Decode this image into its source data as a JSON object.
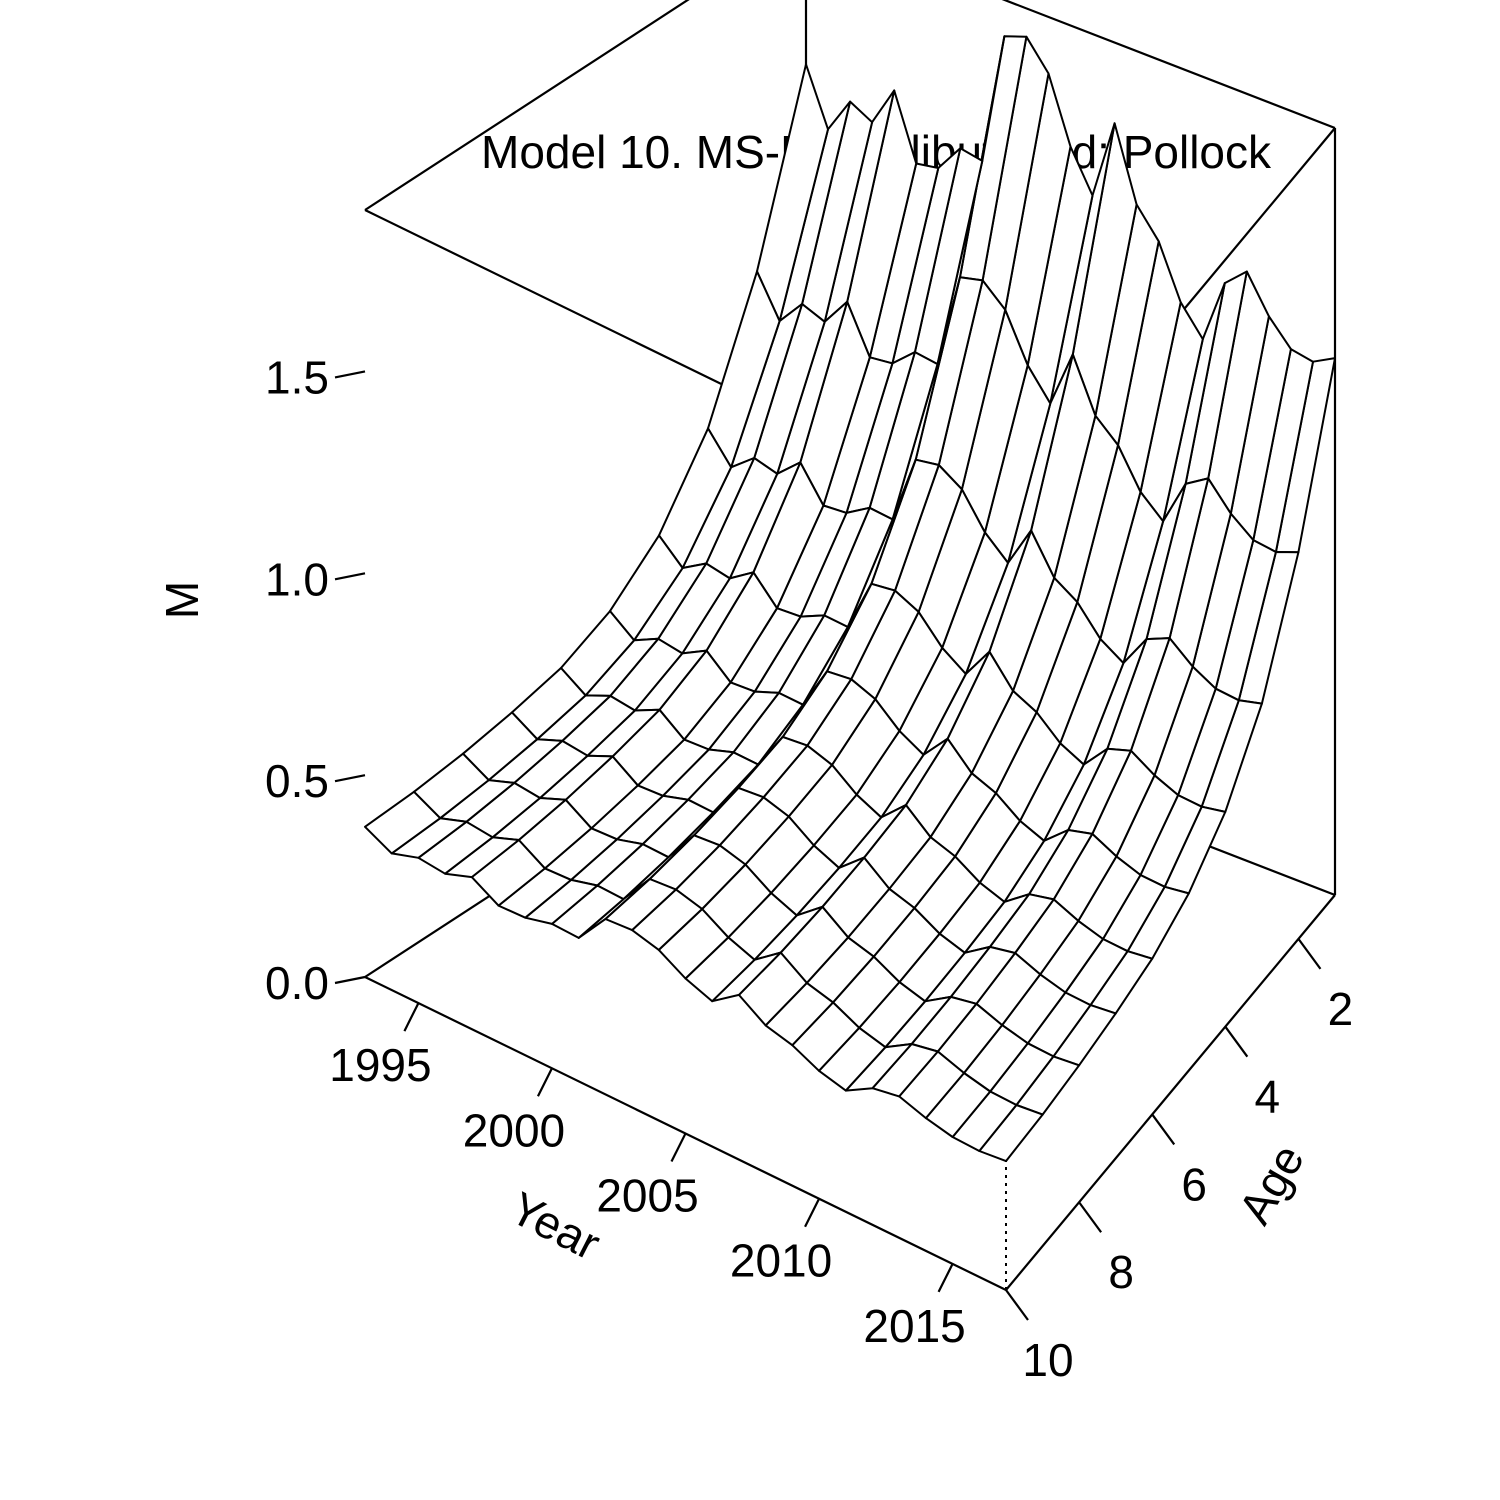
{
  "chart_data": {
    "type": "surface",
    "title": "Model 10. MS-No Halibut med: Pollock",
    "xlabel": "Year",
    "ylabel": "Age",
    "zlabel": "M",
    "x_ticks": [
      1995,
      2000,
      2005,
      2010,
      2015
    ],
    "y_ticks": [
      2,
      4,
      6,
      8,
      10
    ],
    "z_ticks": [
      "0.0",
      "0.5",
      "1.0",
      "1.5"
    ],
    "xlim": [
      1993,
      2017
    ],
    "ylim": [
      1,
      10
    ],
    "zlim": [
      0,
      1.9
    ],
    "years": [
      1993,
      1994,
      1995,
      1996,
      1997,
      1998,
      1999,
      2000,
      2001,
      2002,
      2003,
      2004,
      2005,
      2006,
      2007,
      2008,
      2009,
      2010,
      2011,
      2012,
      2013,
      2014,
      2015,
      2016,
      2017
    ],
    "ages": [
      1,
      2,
      3,
      4,
      5,
      6,
      7,
      8,
      9,
      10
    ],
    "M_age1_by_year": [
      1.55,
      1.41,
      1.5,
      1.47,
      1.57,
      1.41,
      1.42,
      1.49,
      1.48,
      1.81,
      1.83,
      1.76,
      1.6,
      1.5,
      1.7,
      1.52,
      1.45,
      1.32,
      1.25,
      1.41,
      1.46,
      1.37,
      1.31,
      1.3,
      1.33
    ],
    "age_multipliers": [
      1.0,
      0.72,
      0.52,
      0.4,
      0.33,
      0.29,
      0.27,
      0.255,
      0.245,
      0.24
    ]
  }
}
